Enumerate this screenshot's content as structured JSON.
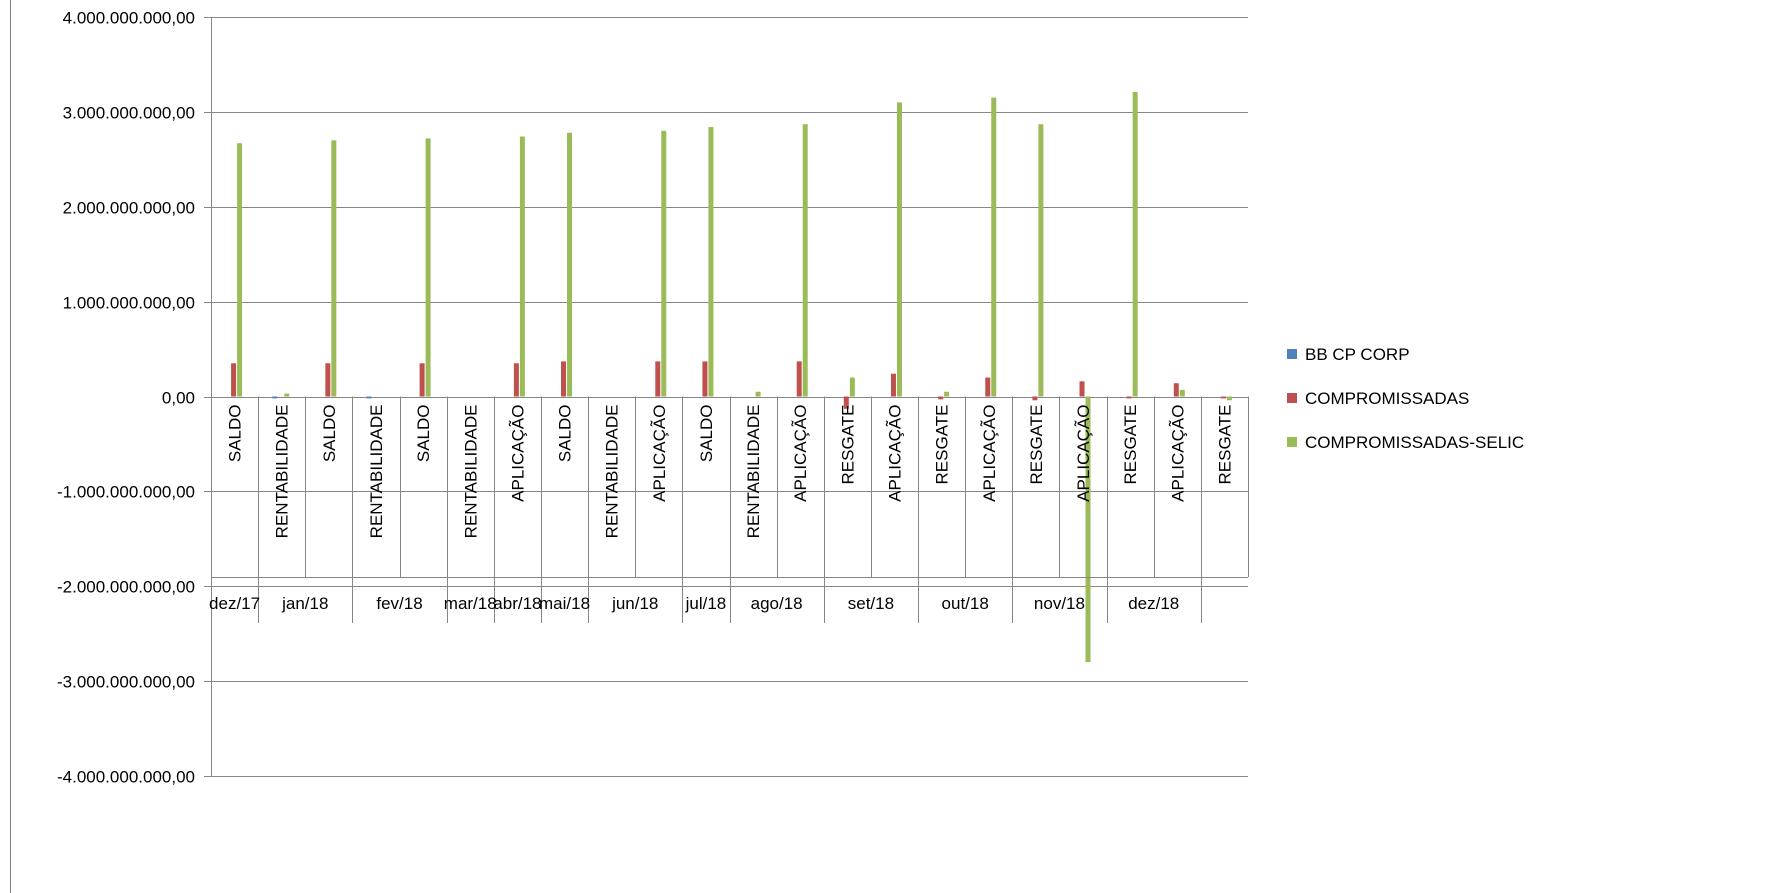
{
  "chart_data": {
    "type": "bar",
    "title": "",
    "xlabel": "",
    "ylabel": "",
    "ylim": [
      -4000000000,
      4000000000
    ],
    "y_ticks": [
      {
        "value": 4000000000,
        "label": "4.000.000.000,00"
      },
      {
        "value": 3000000000,
        "label": "3.000.000.000,00"
      },
      {
        "value": 2000000000,
        "label": "2.000.000.000,00"
      },
      {
        "value": 1000000000,
        "label": "1.000.000.000,00"
      },
      {
        "value": 0,
        "label": "0,00"
      },
      {
        "value": -1000000000,
        "label": "-1.000.000.000,00"
      },
      {
        "value": -2000000000,
        "label": "-2.000.000.000,00"
      },
      {
        "value": -3000000000,
        "label": "-3.000.000.000,00"
      },
      {
        "value": -4000000000,
        "label": "-4.000.000.000,00"
      }
    ],
    "grid": true,
    "legend_position": "right",
    "categories": [
      "SALDO",
      "RENTABILIDADE",
      "SALDO",
      "RENTABILIDADE",
      "SALDO",
      "RENTABILIDADE",
      "APLICAÇÃO",
      "SALDO",
      "RENTABILIDADE",
      "APLICAÇÃO",
      "SALDO",
      "RENTABILIDADE",
      "APLICAÇÃO",
      "RESGATE",
      "APLICAÇÃO",
      "RESGATE",
      "APLICAÇÃO",
      "RESGATE",
      "APLICAÇÃO",
      "RESGATE",
      "APLICAÇÃO",
      "RESGATE"
    ],
    "groups": [
      {
        "label": "dez/17",
        "count": 1
      },
      {
        "label": "jan/18",
        "count": 2
      },
      {
        "label": "fev/18",
        "count": 2
      },
      {
        "label": "mar/18",
        "count": 1
      },
      {
        "label": "abr/18",
        "count": 1
      },
      {
        "label": "mai/18",
        "count": 1
      },
      {
        "label": "jun/18",
        "count": 2
      },
      {
        "label": "jul/18",
        "count": 1
      },
      {
        "label": "ago/18",
        "count": 2
      },
      {
        "label": "set/18",
        "count": 2
      },
      {
        "label": "out/18",
        "count": 2
      },
      {
        "label": "nov/18",
        "count": 2
      },
      {
        "label": "dez/18",
        "count": 2
      }
    ],
    "series": [
      {
        "name": "BB CP CORP",
        "color": "#4F81BD",
        "values": [
          0,
          -20000000,
          0,
          -20000000,
          0,
          0,
          0,
          0,
          0,
          0,
          0,
          0,
          0,
          0,
          0,
          0,
          0,
          0,
          0,
          0,
          0,
          0
        ]
      },
      {
        "name": "COMPROMISSADAS",
        "color": "#C0504D",
        "values": [
          350000000,
          0,
          350000000,
          0,
          350000000,
          0,
          350000000,
          370000000,
          0,
          370000000,
          370000000,
          0,
          370000000,
          -130000000,
          240000000,
          -30000000,
          200000000,
          -40000000,
          160000000,
          -20000000,
          140000000,
          -20000000
        ]
      },
      {
        "name": "COMPROMISSADAS-SELIC",
        "color": "#9BBB59",
        "values": [
          2670000000,
          30000000,
          2700000000,
          0,
          2720000000,
          0,
          2740000000,
          2780000000,
          0,
          2800000000,
          2840000000,
          50000000,
          2870000000,
          200000000,
          3100000000,
          50000000,
          3150000000,
          2870000000,
          -2800000000,
          3210000000,
          70000000,
          -40000000
        ]
      }
    ]
  }
}
